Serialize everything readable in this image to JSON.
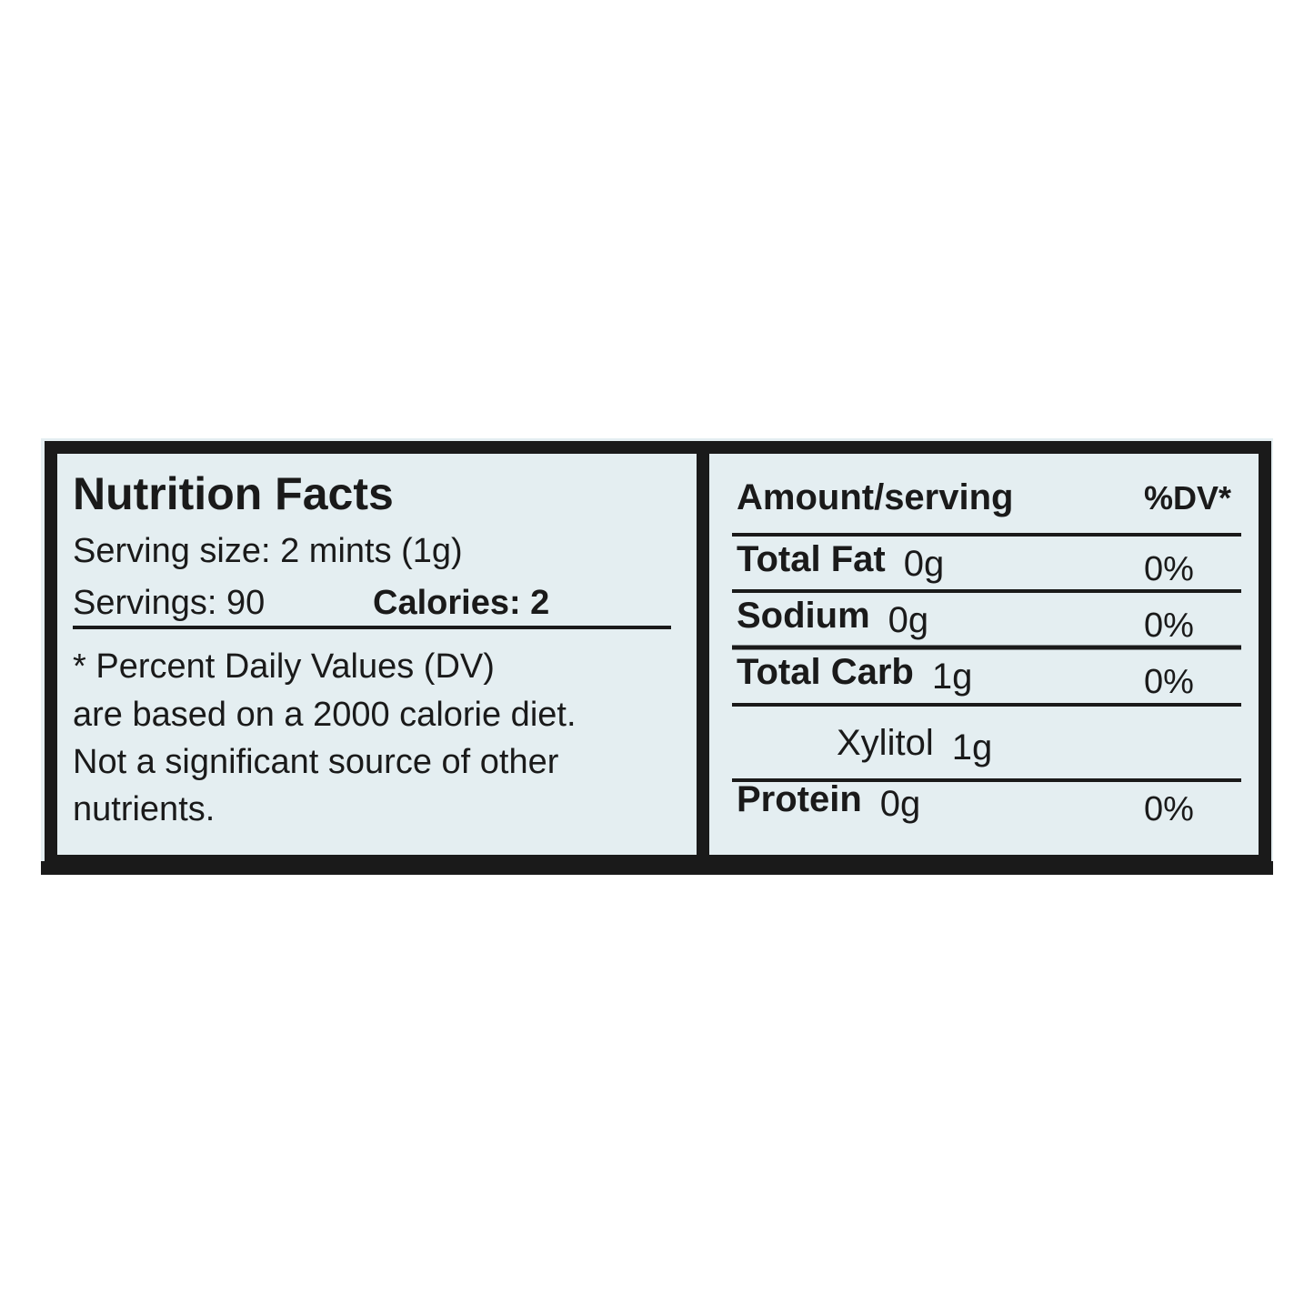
{
  "label": {
    "left": {
      "title": "Nutrition Facts",
      "serving_size": "Serving size: 2 mints (1g)",
      "servings": "Servings: 90",
      "calories": "Calories: 2",
      "footnote": [
        "* Percent Daily Values (DV)",
        "are based on a 2000 calorie diet.",
        "Not a significant source of other",
        "nutrients."
      ]
    },
    "right": {
      "header": [
        "Amount/serving",
        "%DV*"
      ],
      "rows": [
        {
          "name": "Total Fat",
          "amount": "0g",
          "dv": "0%"
        },
        {
          "name": "Sodium",
          "amount": "0g",
          "dv": "0%"
        },
        {
          "name": "Total Carb",
          "amount": "1g",
          "dv": "0%"
        },
        {
          "name": "Xylitol",
          "amount": "1g"
        },
        {
          "name": "Protein",
          "amount": "0g",
          "dv": "0%"
        }
      ]
    }
  }
}
